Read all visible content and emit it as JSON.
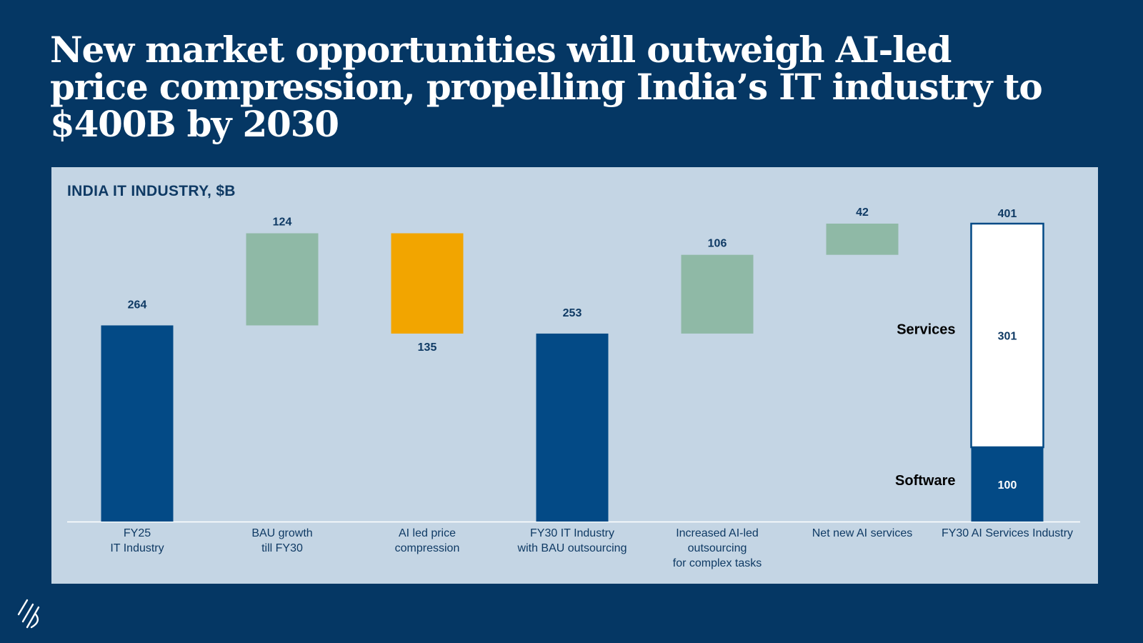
{
  "headline": "New market opportunities will outweigh AI-led price compression, propelling India’s IT industry to $400B by 2030",
  "colors": {
    "background": "#053764",
    "panel": "#c4d5e4",
    "navy_bar": "#034a86",
    "green_bar": "#8fb9a6",
    "orange_bar": "#f2a500",
    "white_bar": "#ffffff",
    "label": "#0f3a64"
  },
  "logo_icon": "slash-mark-icon",
  "chart_data": {
    "type": "waterfall",
    "title": "INDIA IT INDUSTRY, $B",
    "ylim": [
      0,
      401
    ],
    "steps": [
      {
        "category": [
          "FY25",
          "IT  Industry"
        ],
        "kind": "total",
        "value": 264,
        "label": "264"
      },
      {
        "category": [
          "BAU growth",
          "till FY30"
        ],
        "kind": "increase",
        "value": 124,
        "label": "124"
      },
      {
        "category": [
          "AI led price",
          "compression"
        ],
        "kind": "decrease",
        "value": 135,
        "label": "135"
      },
      {
        "category": [
          "FY30 IT Industry",
          "with BAU outsourcing"
        ],
        "kind": "total",
        "value": 253,
        "label": "253"
      },
      {
        "category": [
          "Increased AI-led",
          "outsourcing",
          "for complex tasks"
        ],
        "kind": "increase",
        "value": 106,
        "label": "106"
      },
      {
        "category": [
          "Net new AI services"
        ],
        "kind": "increase",
        "value": 42,
        "label": "42"
      },
      {
        "category": [
          "FY30 AI Services Industry"
        ],
        "kind": "stacked-total",
        "value": 401,
        "label": "401",
        "segments": [
          {
            "name": "Software",
            "value": 100,
            "label": "100"
          },
          {
            "name": "Services",
            "value": 301,
            "label": "301"
          }
        ]
      }
    ]
  }
}
